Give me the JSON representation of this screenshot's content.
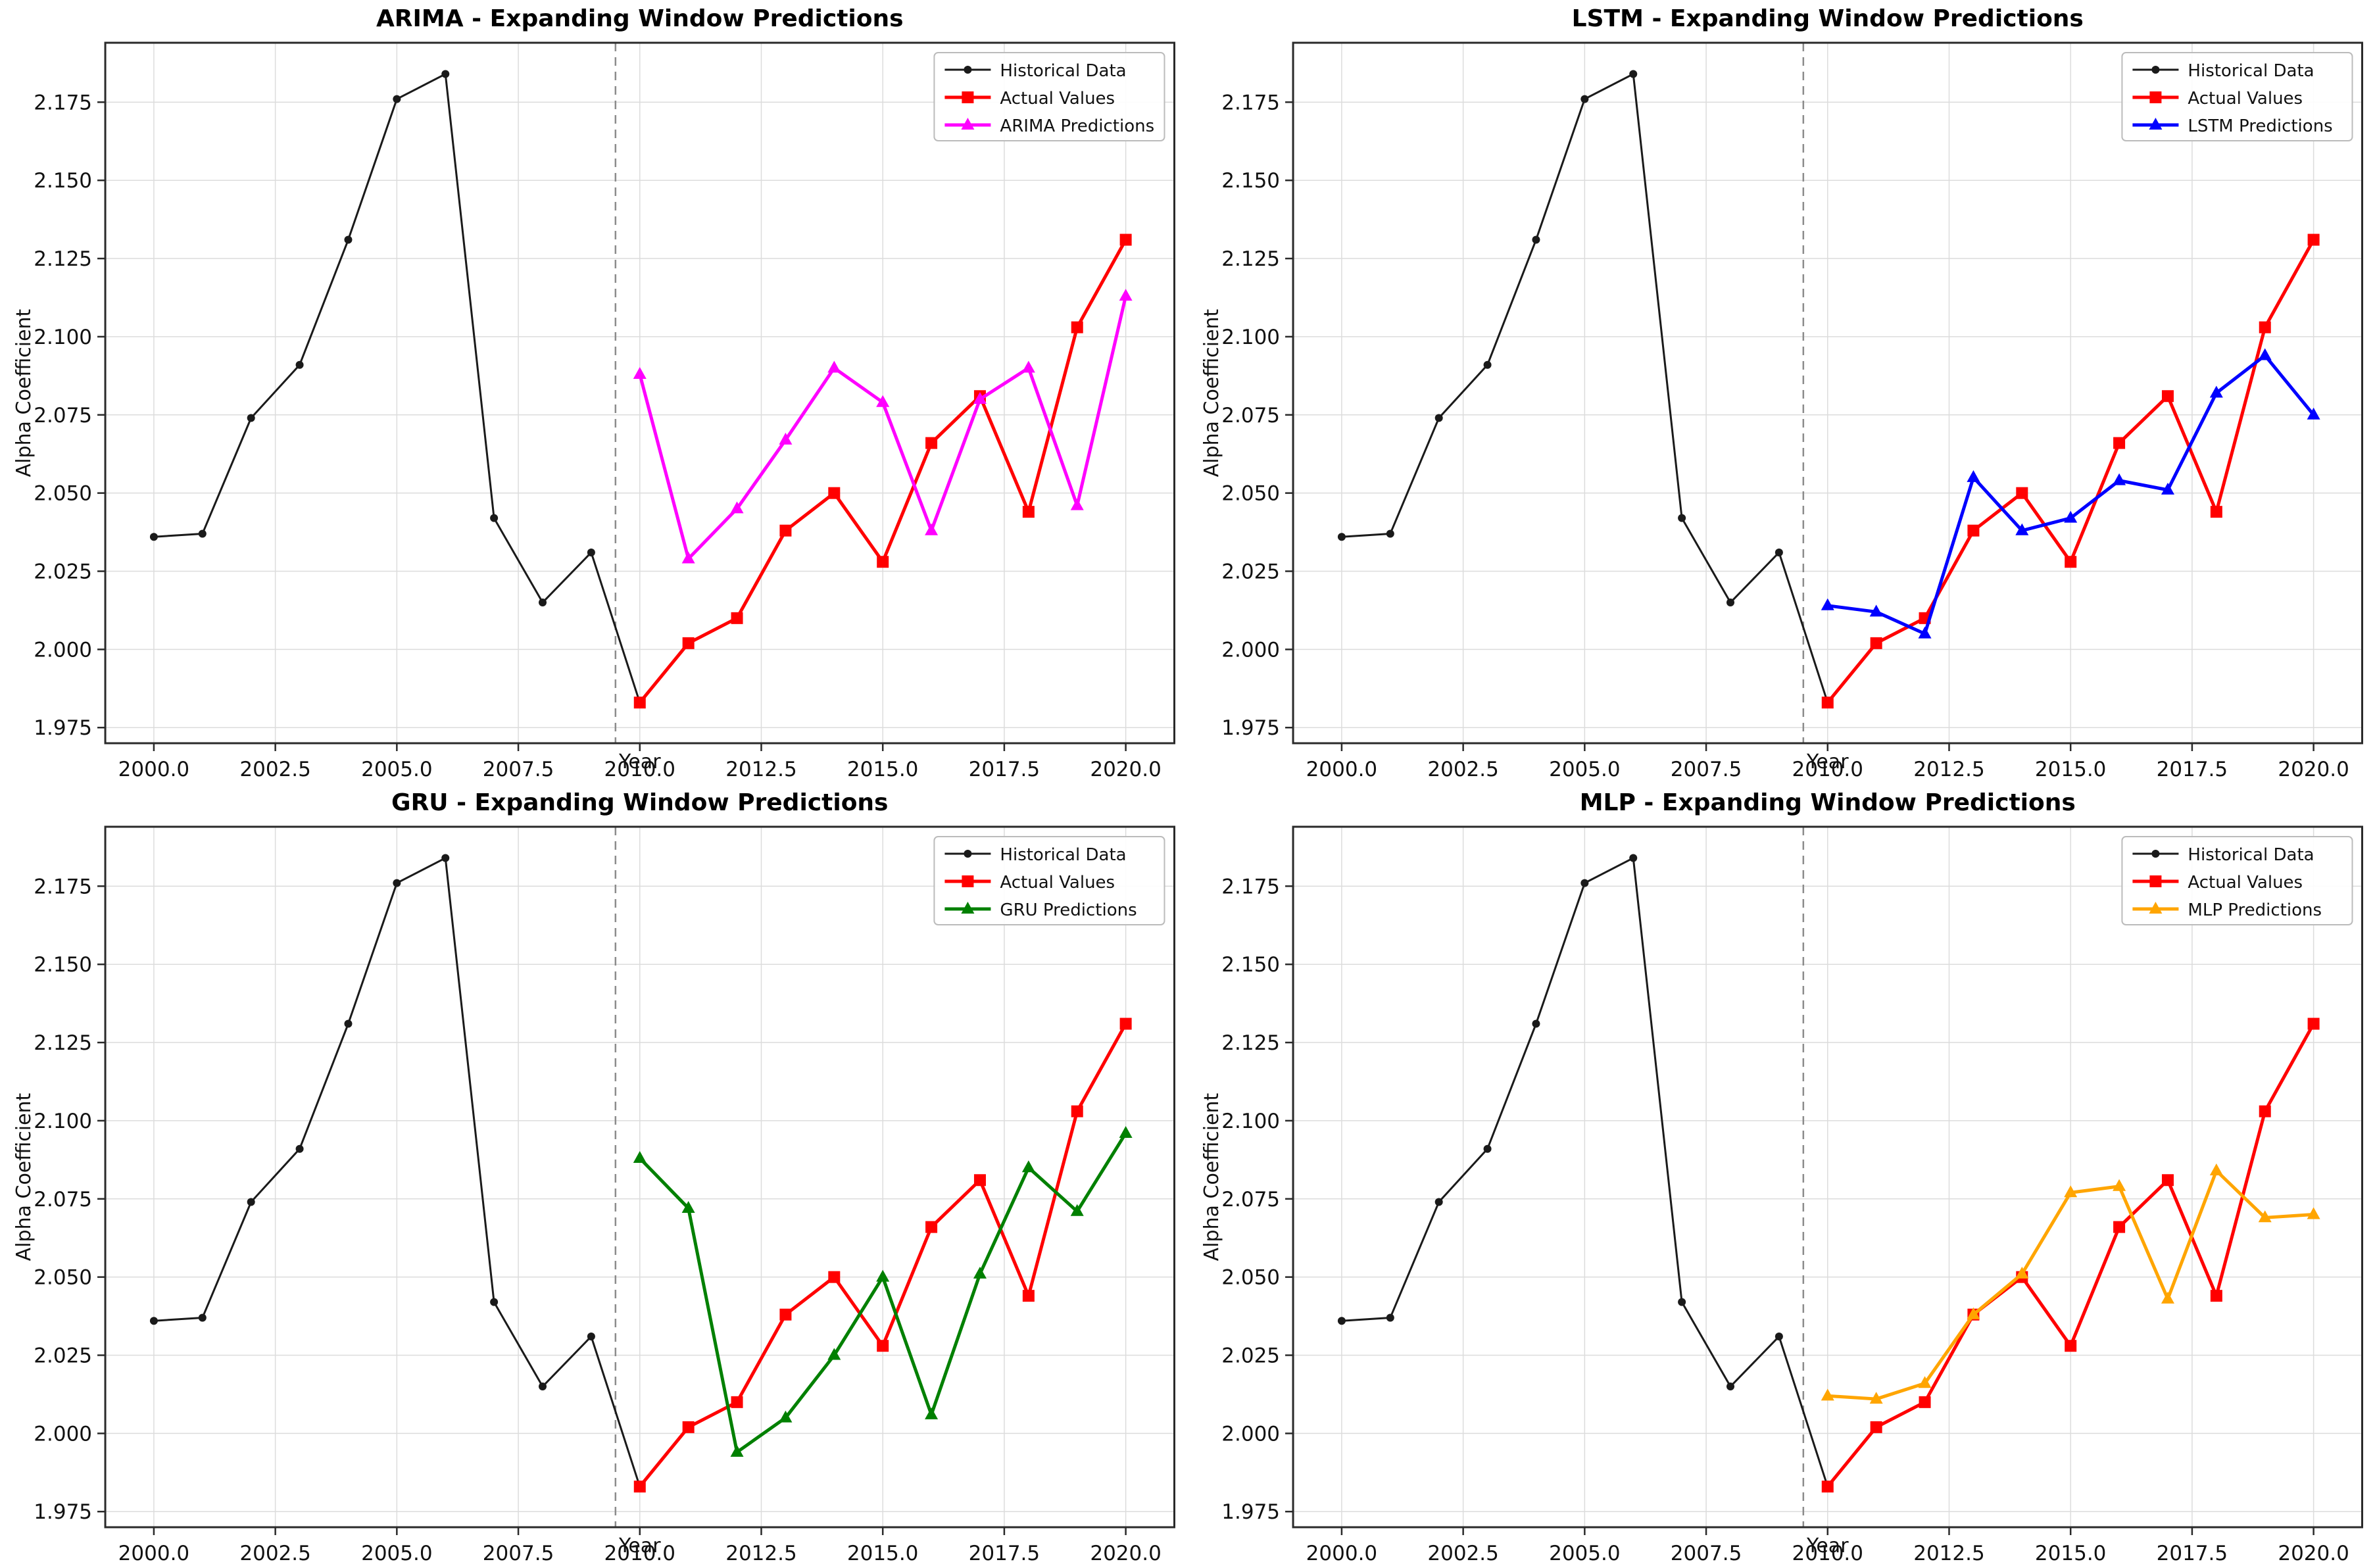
{
  "figure": {
    "background": "#ffffff",
    "xlabel": "Year",
    "ylabel": "Alpha Coefficient",
    "xlim": [
      1999,
      2021
    ],
    "ylim": [
      1.97,
      2.194
    ],
    "x_tick_values": [
      2000.0,
      2002.5,
      2005.0,
      2007.5,
      2010.0,
      2012.5,
      2015.0,
      2017.5,
      2020.0
    ],
    "x_tick_labels": [
      "2000.0",
      "2002.5",
      "2005.0",
      "2007.5",
      "2010.0",
      "2012.5",
      "2015.0",
      "2017.5",
      "2020.0"
    ],
    "y_tick_values": [
      1.975,
      2.0,
      2.025,
      2.05,
      2.075,
      2.1,
      2.125,
      2.15,
      2.175
    ],
    "y_tick_labels": [
      "1.975",
      "2.000",
      "2.025",
      "2.050",
      "2.075",
      "2.100",
      "2.125",
      "2.150",
      "2.175"
    ],
    "grid": true,
    "grid_color": "#dcdcdc",
    "spine_color": "#2a2a2a",
    "tick_label_color": "#111111",
    "split_year": 2009.5,
    "split_line_color": "#8c8c8c",
    "legend_border_color": "#bbbbbb",
    "legend_background": "rgba(255,255,255,0.9)"
  },
  "chart_data": [
    {
      "id": "arima",
      "type": "line",
      "title": "ARIMA - Expanding Window Predictions",
      "legend_position": "upper right",
      "series": [
        {
          "name": "Historical Data",
          "color": "#1a1a1a",
          "marker": "circle",
          "connects_to_series": 1,
          "x": [
            2000,
            2001,
            2002,
            2003,
            2004,
            2005,
            2006,
            2007,
            2008,
            2009
          ],
          "values": [
            2.036,
            2.037,
            2.074,
            2.091,
            2.131,
            2.176,
            2.184,
            2.042,
            2.015,
            2.031
          ]
        },
        {
          "name": "Actual Values",
          "color": "#ff0000",
          "marker": "square",
          "x": [
            2010,
            2011,
            2012,
            2013,
            2014,
            2015,
            2016,
            2017,
            2018,
            2019,
            2020
          ],
          "values": [
            1.983,
            2.002,
            2.01,
            2.038,
            2.05,
            2.028,
            2.066,
            2.081,
            2.044,
            2.103,
            2.131
          ]
        },
        {
          "name": "ARIMA Predictions",
          "color": "#ff00ff",
          "marker": "triangle",
          "x": [
            2010,
            2011,
            2012,
            2013,
            2014,
            2015,
            2016,
            2017,
            2018,
            2019,
            2020
          ],
          "values": [
            2.088,
            2.029,
            2.045,
            2.067,
            2.09,
            2.079,
            2.038,
            2.08,
            2.09,
            2.046,
            2.113
          ]
        }
      ]
    },
    {
      "id": "lstm",
      "type": "line",
      "title": "LSTM - Expanding Window Predictions",
      "legend_position": "upper right",
      "series": [
        {
          "name": "Historical Data",
          "color": "#1a1a1a",
          "marker": "circle",
          "connects_to_series": 1,
          "x": [
            2000,
            2001,
            2002,
            2003,
            2004,
            2005,
            2006,
            2007,
            2008,
            2009
          ],
          "values": [
            2.036,
            2.037,
            2.074,
            2.091,
            2.131,
            2.176,
            2.184,
            2.042,
            2.015,
            2.031
          ]
        },
        {
          "name": "Actual Values",
          "color": "#ff0000",
          "marker": "square",
          "x": [
            2010,
            2011,
            2012,
            2013,
            2014,
            2015,
            2016,
            2017,
            2018,
            2019,
            2020
          ],
          "values": [
            1.983,
            2.002,
            2.01,
            2.038,
            2.05,
            2.028,
            2.066,
            2.081,
            2.044,
            2.103,
            2.131
          ]
        },
        {
          "name": "LSTM Predictions",
          "color": "#0000ff",
          "marker": "triangle",
          "x": [
            2010,
            2011,
            2012,
            2013,
            2014,
            2015,
            2016,
            2017,
            2018,
            2019,
            2020
          ],
          "values": [
            2.014,
            2.012,
            2.005,
            2.055,
            2.038,
            2.042,
            2.054,
            2.051,
            2.082,
            2.094,
            2.075
          ]
        }
      ]
    },
    {
      "id": "gru",
      "type": "line",
      "title": "GRU - Expanding Window Predictions",
      "legend_position": "upper right",
      "series": [
        {
          "name": "Historical Data",
          "color": "#1a1a1a",
          "marker": "circle",
          "connects_to_series": 1,
          "x": [
            2000,
            2001,
            2002,
            2003,
            2004,
            2005,
            2006,
            2007,
            2008,
            2009
          ],
          "values": [
            2.036,
            2.037,
            2.074,
            2.091,
            2.131,
            2.176,
            2.184,
            2.042,
            2.015,
            2.031
          ]
        },
        {
          "name": "Actual Values",
          "color": "#ff0000",
          "marker": "square",
          "x": [
            2010,
            2011,
            2012,
            2013,
            2014,
            2015,
            2016,
            2017,
            2018,
            2019,
            2020
          ],
          "values": [
            1.983,
            2.002,
            2.01,
            2.038,
            2.05,
            2.028,
            2.066,
            2.081,
            2.044,
            2.103,
            2.131
          ]
        },
        {
          "name": "GRU Predictions",
          "color": "#008000",
          "marker": "triangle",
          "x": [
            2010,
            2011,
            2012,
            2013,
            2014,
            2015,
            2016,
            2017,
            2018,
            2019,
            2020
          ],
          "values": [
            2.088,
            2.072,
            1.994,
            2.005,
            2.025,
            2.05,
            2.006,
            2.051,
            2.085,
            2.071,
            2.096
          ]
        }
      ]
    },
    {
      "id": "mlp",
      "type": "line",
      "title": "MLP - Expanding Window Predictions",
      "legend_position": "upper right",
      "series": [
        {
          "name": "Historical Data",
          "color": "#1a1a1a",
          "marker": "circle",
          "connects_to_series": 1,
          "x": [
            2000,
            2001,
            2002,
            2003,
            2004,
            2005,
            2006,
            2007,
            2008,
            2009
          ],
          "values": [
            2.036,
            2.037,
            2.074,
            2.091,
            2.131,
            2.176,
            2.184,
            2.042,
            2.015,
            2.031
          ]
        },
        {
          "name": "Actual Values",
          "color": "#ff0000",
          "marker": "square",
          "x": [
            2010,
            2011,
            2012,
            2013,
            2014,
            2015,
            2016,
            2017,
            2018,
            2019,
            2020
          ],
          "values": [
            1.983,
            2.002,
            2.01,
            2.038,
            2.05,
            2.028,
            2.066,
            2.081,
            2.044,
            2.103,
            2.131
          ]
        },
        {
          "name": "MLP Predictions",
          "color": "#ffa500",
          "marker": "triangle",
          "x": [
            2010,
            2011,
            2012,
            2013,
            2014,
            2015,
            2016,
            2017,
            2018,
            2019,
            2020
          ],
          "values": [
            2.012,
            2.011,
            2.016,
            2.038,
            2.051,
            2.077,
            2.079,
            2.043,
            2.084,
            2.069,
            2.07
          ]
        }
      ]
    }
  ]
}
